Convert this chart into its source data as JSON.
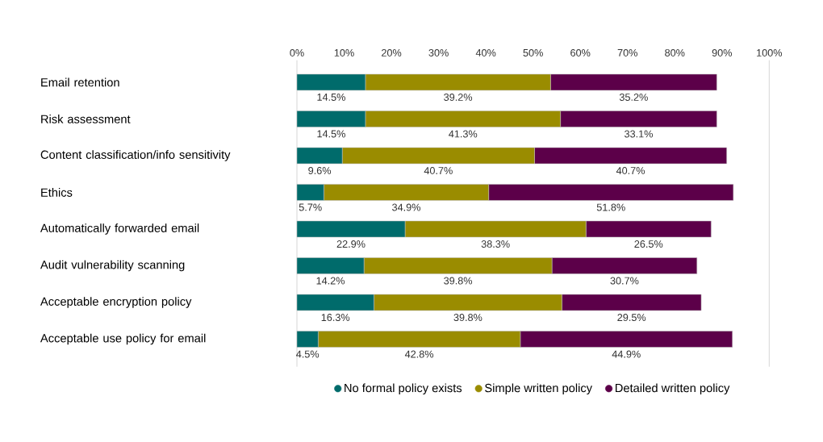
{
  "chart_data": {
    "type": "bar",
    "orientation": "horizontal",
    "stacked": true,
    "legend": "bottom",
    "grid": false,
    "categories": [
      "Email retention",
      "Risk assessment",
      "Content classification/info sensitivity",
      "Ethics",
      "Automatically forwarded email",
      "Audit vulnerability scanning",
      "Acceptable encryption policy",
      "Acceptable use policy for email"
    ],
    "xlim": [
      0,
      100
    ],
    "xticks": [
      {
        "value": 0,
        "label": "0%"
      },
      {
        "value": 10,
        "label": "10%"
      },
      {
        "value": 20,
        "label": "20%"
      },
      {
        "value": 30,
        "label": "30%"
      },
      {
        "value": 40,
        "label": "40%"
      },
      {
        "value": 50,
        "label": "50%"
      },
      {
        "value": 60,
        "label": "60%"
      },
      {
        "value": 70,
        "label": "70%"
      },
      {
        "value": 80,
        "label": "80%"
      },
      {
        "value": 90,
        "label": "90%"
      },
      {
        "value": 100,
        "label": "100%"
      }
    ],
    "series": [
      {
        "name": "No formal policy exists",
        "color": "#006b6b",
        "values": [
          14.5,
          14.5,
          9.6,
          5.7,
          22.9,
          14.2,
          16.3,
          4.5
        ],
        "value_labels": [
          "14.5%",
          "14.5%",
          "9.6%",
          "5.7%",
          "22.9%",
          "14.2%",
          "16.3%",
          "4.5%"
        ]
      },
      {
        "name": "Simple written policy",
        "color": "#9a8c00",
        "values": [
          39.2,
          41.3,
          40.7,
          34.9,
          38.3,
          39.8,
          39.8,
          42.8
        ],
        "value_labels": [
          "39.2%",
          "41.3%",
          "40.7%",
          "34.9%",
          "38.3%",
          "39.8%",
          "39.8%",
          "42.8%"
        ]
      },
      {
        "name": "Detailed written policy",
        "color": "#5c0049",
        "values": [
          35.2,
          33.1,
          40.7,
          51.8,
          26.5,
          30.7,
          29.5,
          44.9
        ],
        "value_labels": [
          "35.2%",
          "33.1%",
          "40.7%",
          "51.8%",
          "26.5%",
          "30.7%",
          "29.5%",
          "44.9%"
        ]
      }
    ]
  }
}
